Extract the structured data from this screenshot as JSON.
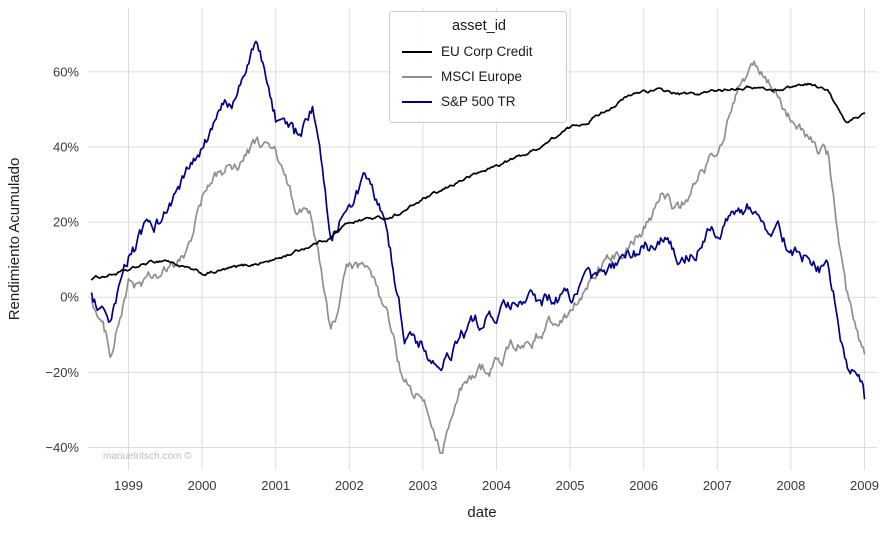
{
  "chart_data": {
    "type": "line",
    "title": "",
    "legend_title": "asset_id",
    "legend_position": "upper center",
    "xlabel": "date",
    "ylabel": "Rendimiento Acumulado",
    "watermark": "manuelritsch.com ©",
    "grid": true,
    "grid_color": "#dcdcdc",
    "background_color": "#ffffff",
    "xlim": [
      1998.45,
      2009.17
    ],
    "ylim": [
      -46,
      77
    ],
    "xticks": [
      1999,
      2000,
      2001,
      2002,
      2003,
      2004,
      2005,
      2006,
      2007,
      2008,
      2009
    ],
    "xtick_labels": [
      "1999",
      "2000",
      "2001",
      "2002",
      "2003",
      "2004",
      "2005",
      "2006",
      "2007",
      "2008",
      "2009"
    ],
    "yticks": [
      -40,
      -20,
      0,
      20,
      40,
      60
    ],
    "ytick_labels": [
      "−40%",
      "−20%",
      "0%",
      "20%",
      "40%",
      "60%"
    ],
    "x": [
      1998.5,
      1998.75,
      1999.0,
      1999.25,
      1999.5,
      1999.75,
      2000.0,
      2000.25,
      2000.5,
      2000.75,
      2001.0,
      2001.25,
      2001.5,
      2001.75,
      2002.0,
      2002.25,
      2002.5,
      2002.75,
      2003.0,
      2003.25,
      2003.5,
      2003.75,
      2004.0,
      2004.25,
      2004.5,
      2004.75,
      2005.0,
      2005.25,
      2005.5,
      2005.75,
      2006.0,
      2006.25,
      2006.5,
      2006.75,
      2007.0,
      2007.25,
      2007.5,
      2007.75,
      2008.0,
      2008.25,
      2008.5,
      2008.75,
      2009.0
    ],
    "series": [
      {
        "name": "EU Corp Credit",
        "color": "#000000",
        "noise": 0.7,
        "values": [
          5,
          6,
          7,
          9,
          10,
          8,
          6,
          7,
          8,
          9,
          10,
          12,
          14,
          16,
          20,
          21,
          21,
          23,
          26,
          28,
          31,
          33,
          35,
          37,
          39,
          42,
          45,
          47,
          50,
          53,
          55,
          55,
          54,
          54,
          55,
          56,
          56,
          55,
          56,
          57,
          55,
          46,
          49
        ]
      },
      {
        "name": "MSCI Europe",
        "color": "#8f8f8f",
        "noise": 2.8,
        "values": [
          0,
          -14,
          3,
          4,
          6,
          10,
          26,
          33,
          36,
          41,
          38,
          24,
          20,
          -10,
          8,
          6,
          -5,
          -24,
          -28,
          -40,
          -26,
          -20,
          -17,
          -13,
          -11,
          -7,
          -3,
          3,
          8,
          14,
          19,
          27,
          23,
          32,
          40,
          52,
          62,
          55,
          48,
          42,
          37,
          2,
          -15
        ]
      },
      {
        "name": "S&P 500 TR",
        "color": "#00008b",
        "noise": 3.2,
        "values": [
          0,
          -10,
          10,
          18,
          22,
          31,
          38,
          49,
          55,
          68,
          48,
          42,
          50,
          16,
          28,
          30,
          19,
          -10,
          -13,
          -21,
          -11,
          -7,
          -5,
          -3,
          -2,
          0,
          0,
          3,
          6,
          10,
          13,
          16,
          10,
          14,
          18,
          22,
          25,
          19,
          13,
          11,
          7,
          -16,
          -27
        ]
      }
    ]
  }
}
